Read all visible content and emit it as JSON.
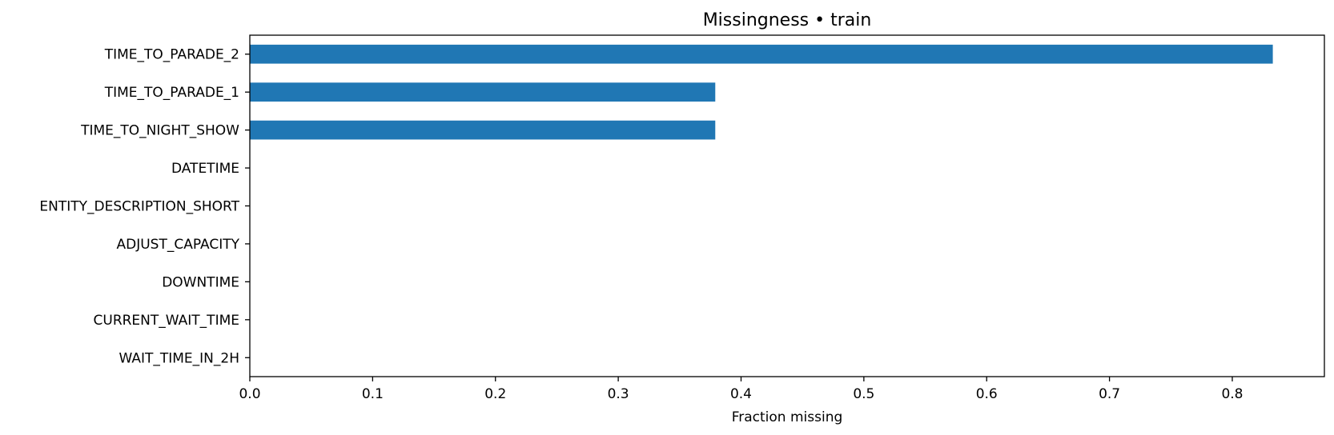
{
  "chart_data": {
    "type": "bar",
    "orientation": "horizontal",
    "title": "Missingness • train",
    "xlabel": "Fraction missing",
    "ylabel": "",
    "categories": [
      "TIME_TO_PARADE_2",
      "TIME_TO_PARADE_1",
      "TIME_TO_NIGHT_SHOW",
      "DATETIME",
      "ENTITY_DESCRIPTION_SHORT",
      "ADJUST_CAPACITY",
      "DOWNTIME",
      "CURRENT_WAIT_TIME",
      "WAIT_TIME_IN_2H"
    ],
    "values": [
      0.833,
      0.379,
      0.379,
      0,
      0,
      0,
      0,
      0,
      0
    ],
    "xlim": [
      0,
      0.875
    ],
    "xticks": [
      "0.0",
      "0.1",
      "0.2",
      "0.3",
      "0.4",
      "0.5",
      "0.6",
      "0.7",
      "0.8"
    ],
    "grid": false,
    "colors": {
      "bar": "#2077b4",
      "axis": "#000000"
    }
  }
}
